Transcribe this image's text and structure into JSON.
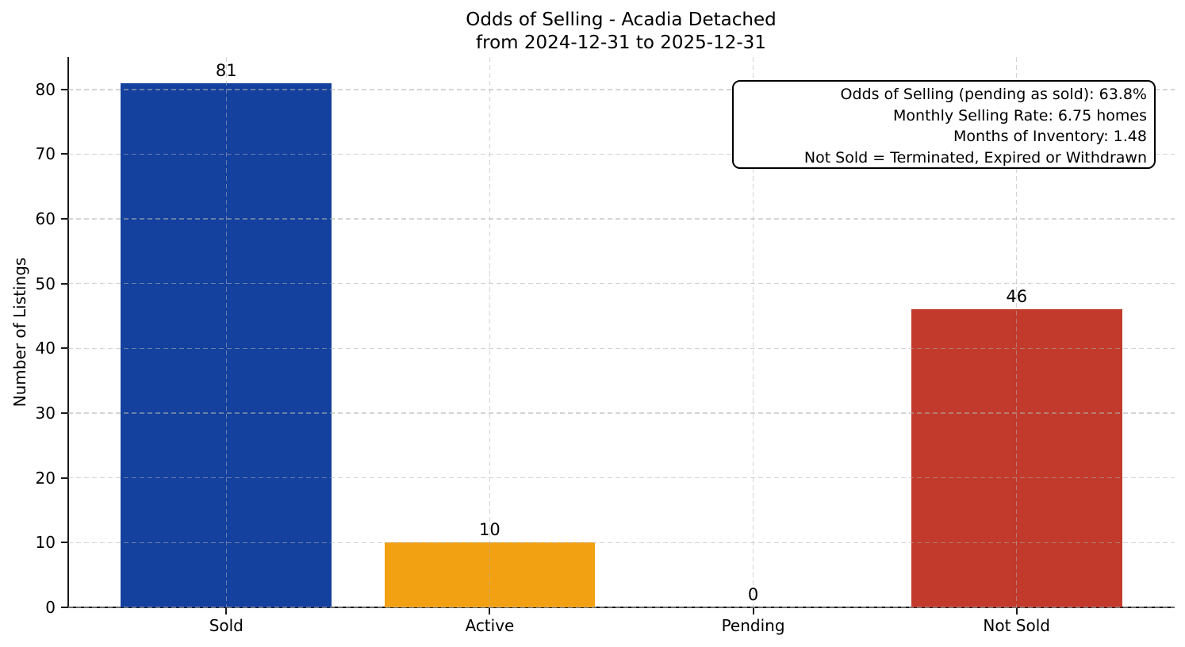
{
  "chart_data": {
    "type": "bar",
    "title_lines": [
      "Odds of Selling - Acadia Detached",
      "from 2024-12-31 to 2025-12-31"
    ],
    "categories": [
      "Sold",
      "Active",
      "Pending",
      "Not Sold"
    ],
    "values": [
      81,
      10,
      0,
      46
    ],
    "value_labels": [
      "81",
      "10",
      "0",
      "46"
    ],
    "bar_colors": [
      "#14419E",
      "#F2A113",
      null,
      "#C13A2B"
    ],
    "ylabel": "Number of Listings",
    "xlabel": "",
    "ylim": [
      0,
      85
    ],
    "xlim": [
      -0.6,
      3.6
    ],
    "bar_width_units": 0.8,
    "yticks": [
      0,
      10,
      20,
      30,
      40,
      50,
      60,
      70,
      80
    ],
    "grid": "dashed, drawn over bars",
    "legend_position": "none",
    "annotation_lines": [
      "Odds of Selling (pending as sold): 63.8%",
      "Monthly Selling Rate: 6.75 homes",
      "Months of Inventory: 1.48",
      "Not Sold = Terminated, Expired or Withdrawn"
    ],
    "colors": {
      "spine": "#1a1a1a",
      "grid": "#b0b0b0",
      "text": "#000000",
      "background": "#ffffff"
    }
  }
}
